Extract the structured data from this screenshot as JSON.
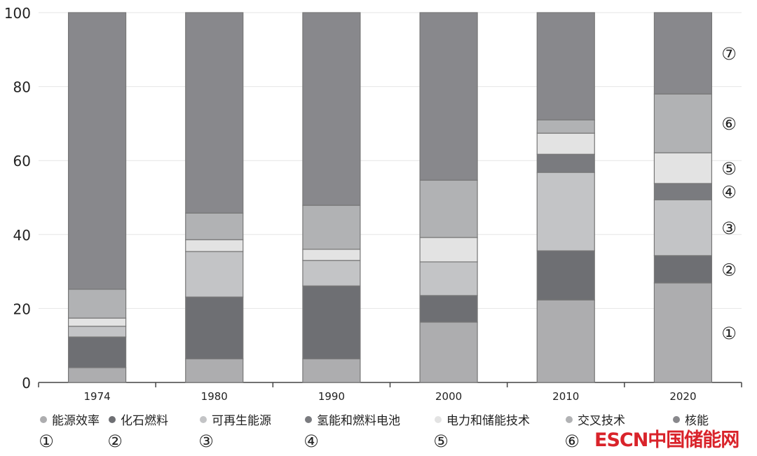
{
  "chart_data": {
    "type": "bar",
    "stacked": true,
    "categories": [
      "1974",
      "1980",
      "1990",
      "2000",
      "2010",
      "2020"
    ],
    "ylim": [
      0,
      100
    ],
    "yticks": [
      "0",
      "20",
      "40",
      "60",
      "80",
      "100"
    ],
    "grid": true,
    "legend_position": "bottom",
    "series": [
      {
        "name": "能源效率",
        "marker": "①",
        "color": "#adadaf",
        "values": [
          4.0,
          6.4,
          6.4,
          16.3,
          22.3,
          26.9
        ]
      },
      {
        "name": "化石燃料",
        "marker": "②",
        "color": "#6e6f73",
        "values": [
          8.3,
          16.7,
          19.7,
          7.2,
          13.3,
          7.4
        ]
      },
      {
        "name": "可再生能源",
        "marker": "③",
        "color": "#c3c4c6",
        "values": [
          2.9,
          12.3,
          6.9,
          9.1,
          21.2,
          15.1
        ]
      },
      {
        "name": "氢能和燃料电池",
        "marker": "④",
        "color": "#7a7b7f",
        "values": [
          0,
          0,
          0,
          0,
          4.9,
          4.4
        ]
      },
      {
        "name": "电力和储能技术",
        "marker": "⑤",
        "color": "#e3e3e3",
        "values": [
          2.2,
          3.2,
          3.0,
          6.6,
          5.7,
          8.3
        ]
      },
      {
        "name": "交叉技术",
        "marker": "⑥",
        "color": "#b1b2b4",
        "values": [
          7.8,
          7.2,
          11.9,
          15.5,
          3.6,
          15.9
        ]
      },
      {
        "name": "核能",
        "marker": "⑦",
        "color": "#88888c",
        "values": [
          74.8,
          54.2,
          52.1,
          45.3,
          29.0,
          22.0
        ]
      }
    ]
  },
  "watermark": "ESCN中国储能网"
}
